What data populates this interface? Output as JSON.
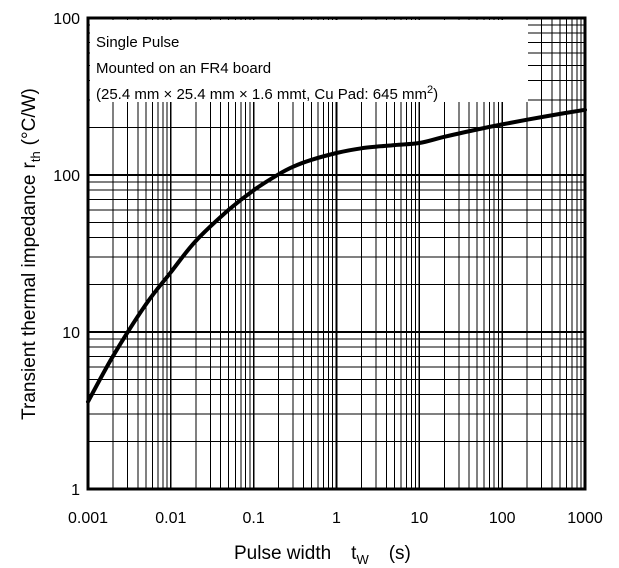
{
  "chart_data": {
    "type": "line",
    "x_scale": "log",
    "y_scale": "log",
    "xlim": [
      0.001,
      1000
    ],
    "ylim": [
      1,
      1000
    ],
    "grid": true,
    "x_ticks": [
      "0.001",
      "0.01",
      "0.1",
      "1",
      "10",
      "100",
      "1000"
    ],
    "y_ticks": [
      "1",
      "10",
      "100"
    ],
    "y_ticks_top": "100",
    "xlabel": {
      "text": "Pulse width",
      "symbol_main": "t",
      "symbol_sub": "W",
      "unit": "(s)"
    },
    "ylabel": {
      "text": "Transient thermal impedance",
      "symbol_main": "r",
      "symbol_sub": "th",
      "unit": "(°C/W)"
    },
    "annotation": {
      "line1": "Single Pulse",
      "line2": "Mounted on an FR4 board",
      "line3": "(25.4 mm × 25.4 mm × 1.6 mmt, Cu Pad: 645 mm",
      "line3_sup": "2",
      "line3_end": ")"
    },
    "series": [
      {
        "x": [
          0.001,
          0.002,
          0.005,
          0.01,
          0.02,
          0.05,
          0.1,
          0.2,
          0.3,
          0.5,
          1,
          2,
          5,
          10,
          20,
          50,
          100,
          200,
          500,
          1000
        ],
        "y": [
          3.6,
          7,
          15,
          24,
          38,
          60,
          80,
          101,
          113,
          125,
          138,
          148,
          155,
          160,
          175,
          195,
          210,
          225,
          245,
          260
        ]
      }
    ]
  }
}
